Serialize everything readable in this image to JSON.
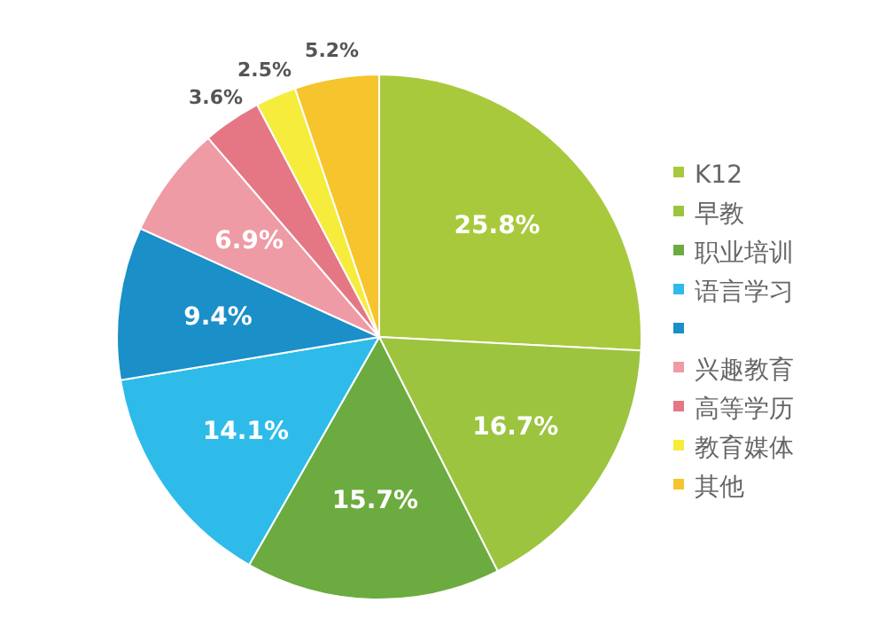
{
  "chart_data": {
    "type": "pie",
    "categories": [
      "K12",
      "早教",
      "职业培训",
      "语言学习",
      null,
      "兴趣教育",
      "高等学历",
      "教育媒体",
      "其他"
    ],
    "values": [
      25.8,
      16.7,
      15.7,
      14.1,
      9.4,
      6.9,
      3.6,
      2.5,
      5.2
    ],
    "colors": [
      "#a9c93d",
      "#9cc43f",
      "#6cab3f",
      "#2ebbea",
      "#1a8fc8",
      "#ee9ba6",
      "#e57785",
      "#f6ec3c",
      "#f6c42c"
    ],
    "value_labels": [
      "25.8%",
      "16.7%",
      "15.7%",
      "14.1%",
      "9.4%",
      "6.9%",
      "3.6%",
      "2.5%",
      "5.2%"
    ],
    "legend": "right"
  }
}
